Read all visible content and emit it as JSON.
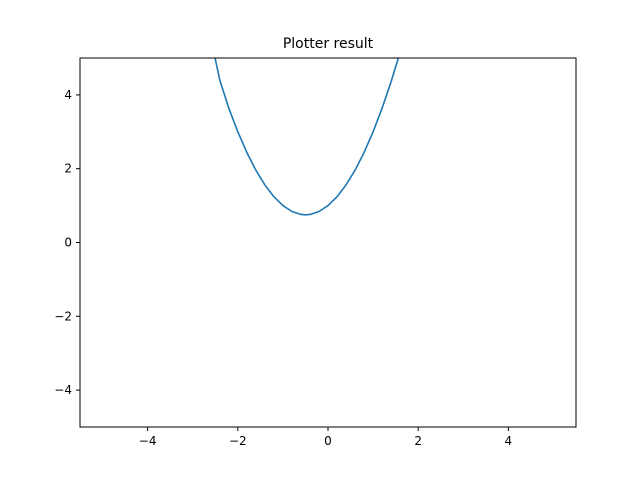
{
  "chart_data": {
    "type": "line",
    "title": "Plotter result",
    "xlabel": "",
    "ylabel": "",
    "xlim": [
      -5.5,
      5.5
    ],
    "ylim": [
      -5,
      5
    ],
    "xticks": [
      -4,
      -2,
      0,
      2,
      4
    ],
    "yticks": [
      -4,
      -2,
      0,
      2,
      4
    ],
    "xtick_labels": [
      "−4",
      "−2",
      "0",
      "2",
      "4"
    ],
    "ytick_labels": [
      "−4",
      "−2",
      "0",
      "2",
      "4"
    ],
    "grid": false,
    "series": [
      {
        "color": "#1f77b4",
        "x": [
          -2.6,
          -2.4,
          -2.2,
          -2.0,
          -1.8,
          -1.6,
          -1.4,
          -1.2,
          -1.0,
          -0.8,
          -0.6,
          -0.5,
          -0.4,
          -0.2,
          0.0,
          0.2,
          0.4,
          0.6,
          0.8,
          1.0,
          1.2,
          1.4,
          1.6
        ],
        "y": [
          5.55,
          4.4,
          3.64,
          3.0,
          2.44,
          1.96,
          1.56,
          1.24,
          1.0,
          0.84,
          0.76,
          0.75,
          0.76,
          0.84,
          1.0,
          1.24,
          1.56,
          1.96,
          2.44,
          3.0,
          3.64,
          4.36,
          5.16
        ]
      }
    ]
  }
}
